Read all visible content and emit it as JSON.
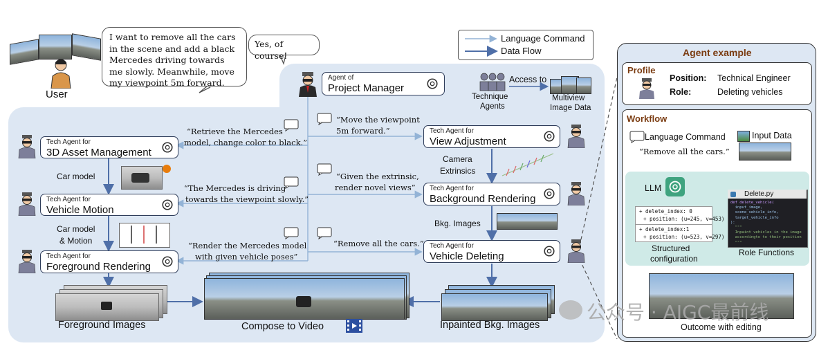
{
  "legend": {
    "language_command": "Language Command",
    "data_flow": "Data Flow"
  },
  "user": {
    "label": "User",
    "request": "I want to remove all the cars in the scene and add a black Mercedes driving towards me slowly. Meanwhile, move my viewpoint 5m forward."
  },
  "pm_reply": "Yes, of course!",
  "project_manager": {
    "small": "Agent of",
    "big": "Project Manager"
  },
  "tech_agents": {
    "label_line1": "Technique",
    "label_line2": "Agents",
    "access_to": "Access to",
    "multiview_line1": "Multiview",
    "multiview_line2": "Image Data"
  },
  "left_agents": [
    {
      "small": "Tech Agent for",
      "big": "3D Asset Management"
    },
    {
      "small": "Tech Agent for",
      "big": "Vehicle Motion"
    },
    {
      "small": "Tech Agent for",
      "big": "Foreground Rendering"
    }
  ],
  "right_agents": [
    {
      "small": "Tech Agent for",
      "big": "View Adjustment"
    },
    {
      "small": "Tech Agent for",
      "big": "Background Rendering"
    },
    {
      "small": "Tech Agent for",
      "big": "Vehicle Deleting"
    }
  ],
  "quotes": {
    "retrieve_l1": "“Retrieve the Mercedes",
    "retrieve_l2": "model, change color to black.”",
    "driving_l1": "“The Mercedes is driving",
    "driving_l2": "towards the viewpoint slowly.”",
    "render_l1": "“Render the Mercedes model",
    "render_l2": "with given vehicle poses”",
    "move_l1": "“Move the viewpoint",
    "move_l2": "5m forward.”",
    "extrinsic_l1": "“Given the extrinsic,",
    "extrinsic_l2": "render novel views”",
    "remove": "“Remove all the cars.”"
  },
  "flow_labels": {
    "car_model": "Car model",
    "car_model_motion_l1": "Car model",
    "car_model_motion_l2": "& Motion",
    "camera_l1": "Camera",
    "camera_l2": "Extrinsics",
    "bkg_images": "Bkg. Images"
  },
  "bottom": {
    "foreground_images": "Foreground Images",
    "compose_to_video": "Compose to Video",
    "inpainted_bkg": "Inpainted Bkg. Images"
  },
  "agent_example": {
    "title": "Agent example",
    "profile_title": "Profile",
    "position_key": "Position:",
    "position_val": "Technical Engineer",
    "role_key": "Role:",
    "role_val": "Deleting vehicles",
    "workflow_title": "Workflow",
    "language_command": "Language Command",
    "input_data": "Input Data",
    "command_quote": "“Remove all the cars.”",
    "llm": "LLM",
    "file_name": "Delete.py",
    "config_lines": [
      "+ delete_index: 0",
      "+ position: (u=245, v=453)",
      "+ delete_index:1",
      "+ position: (u=523, v=297)"
    ],
    "code_lines": [
      "def delete_vehicle(",
      "  input_image,",
      "  scene_vehicle_info,",
      "  target_vehicle_info",
      "):",
      "  \"\"\"",
      "  Inpaint vehicles in the image",
      "  accordingto to their position",
      "  \"\"\""
    ],
    "structured_l1": "Structured",
    "structured_l2": "configuration",
    "role_functions": "Role Functions",
    "outcome": "Outcome with editing"
  },
  "watermark": "公众号 · AIGC最前线",
  "colors": {
    "panel": "#dde7f3",
    "arrow": "#4f6fa8",
    "command": "#93b3d6",
    "workflow_bg": "#cfeae7",
    "title_brown": "#7a3b10"
  }
}
